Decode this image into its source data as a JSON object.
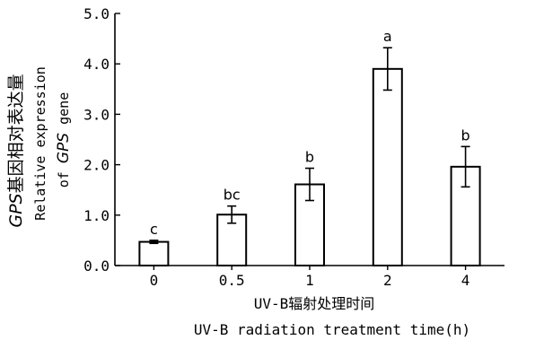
{
  "chart_data": {
    "type": "bar",
    "categories": [
      "0",
      "0.5",
      "1",
      "2",
      "4"
    ],
    "values": [
      0.47,
      1.01,
      1.61,
      3.9,
      1.96
    ],
    "errors": [
      0.03,
      0.17,
      0.32,
      0.42,
      0.4
    ],
    "significance": [
      "c",
      "bc",
      "b",
      "a",
      "b"
    ],
    "ylim": [
      0,
      5
    ],
    "yticks": [
      "0.0",
      "1.0",
      "2.0",
      "3.0",
      "4.0",
      "5.0"
    ],
    "ylabel_gene": "GPS",
    "ylabel_cn_rest": "基因相对表达量",
    "ylabel_en_line1": "Relative expression",
    "ylabel_en_of": "of ",
    "ylabel_en_gene": "GPS",
    "ylabel_en_tail": " gene",
    "xlabel_cn": "UV-B辐射处理时间",
    "xlabel_en": "UV-B radiation treatment time(h)",
    "bar_fill": "#ffffff",
    "bar_stroke": "#000000"
  }
}
